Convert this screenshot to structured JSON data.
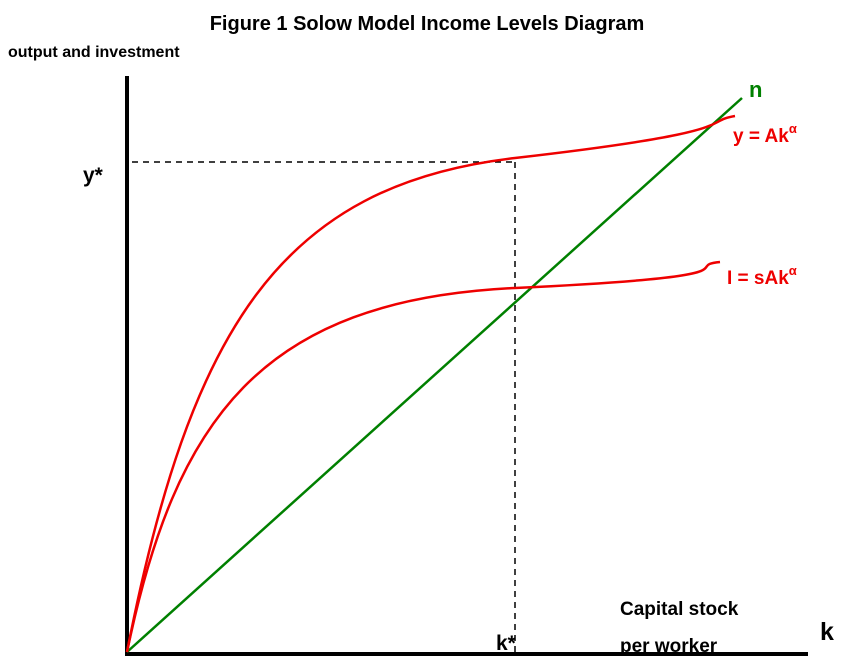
{
  "title": "Figure 1 Solow Model Income Levels Diagram",
  "axes": {
    "y_label": "output and investment",
    "x_label_lines": [
      "Capital stock",
      "per worker"
    ],
    "x_symbol": "k"
  },
  "markers": {
    "y_star": "y*",
    "k_star": "k*"
  },
  "curves": [
    {
      "label": "n"
    },
    {
      "label": "y = Ak",
      "superscript": "α"
    },
    {
      "label": "I = sAk",
      "superscript": "α"
    }
  ]
}
